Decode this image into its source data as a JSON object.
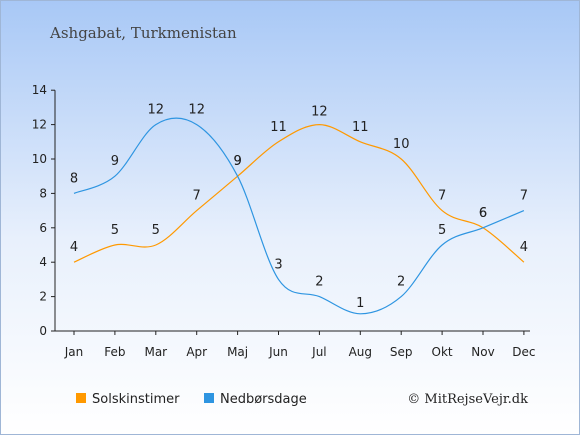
{
  "chart_data": {
    "type": "line",
    "title": "Ashgabat, Turkmenistan",
    "categories": [
      "Jan",
      "Feb",
      "Mar",
      "Apr",
      "Maj",
      "Jun",
      "Jul",
      "Aug",
      "Sep",
      "Okt",
      "Nov",
      "Dec"
    ],
    "series": [
      {
        "name": "Solskinstimer",
        "color": "#ff9900",
        "values": [
          4,
          5,
          5,
          7,
          9,
          11,
          12,
          11,
          10,
          7,
          6,
          4
        ]
      },
      {
        "name": "Nedbørsdage",
        "color": "#2e95e1",
        "values": [
          8,
          9,
          12,
          12,
          9,
          3,
          2,
          1,
          2,
          5,
          6,
          7
        ]
      }
    ],
    "ylim": [
      0,
      14
    ],
    "yticks": [
      0,
      2,
      4,
      6,
      8,
      10,
      12,
      14
    ],
    "legend_position": "bottom-left",
    "grid": false
  },
  "credit": "© MitRejseVejr.dk"
}
